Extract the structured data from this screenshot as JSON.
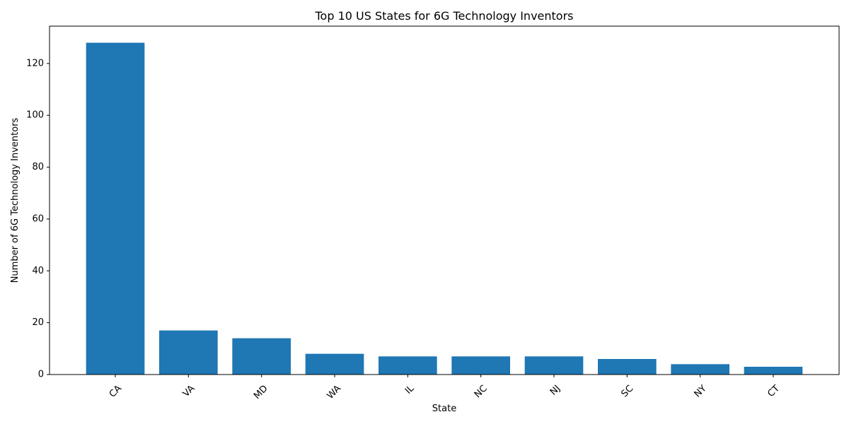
{
  "chart_data": {
    "type": "bar",
    "title": "Top 10 US States for 6G Technology Inventors",
    "xlabel": "State",
    "ylabel": "Number of 6G Technology Inventors",
    "categories": [
      "CA",
      "VA",
      "MD",
      "WA",
      "IL",
      "NC",
      "NJ",
      "SC",
      "NY",
      "CT"
    ],
    "values": [
      128,
      17,
      14,
      8,
      7,
      7,
      7,
      6,
      4,
      3
    ],
    "yticks": [
      0,
      20,
      40,
      60,
      80,
      100,
      120
    ],
    "ylim": [
      0,
      134.4
    ],
    "grid": false,
    "legend": "none",
    "bar_color": "#1f77b4",
    "xtick_rotation": "45deg"
  }
}
